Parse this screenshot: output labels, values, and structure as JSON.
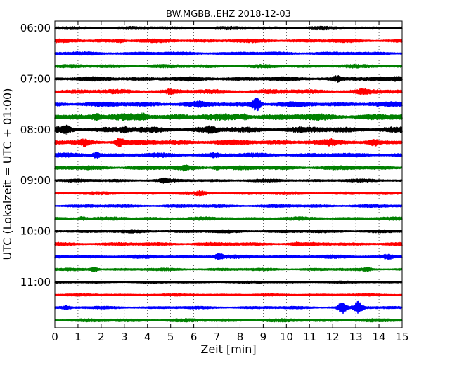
{
  "chart_data": {
    "type": "line",
    "title": "BW.MGBB..EHZ 2018-12-03",
    "xlabel": "Zeit  [min]",
    "ylabel": "UTC (Lokalzeit = UTC + 01:00)",
    "xlim": [
      0,
      15
    ],
    "x_ticks": [
      "0",
      "1",
      "2",
      "3",
      "4",
      "5",
      "6",
      "7",
      "8",
      "9",
      "10",
      "11",
      "12",
      "13",
      "14",
      "15"
    ],
    "y_ticks": [
      "06:00",
      "07:00",
      "08:00",
      "09:00",
      "10:00",
      "11:00"
    ],
    "grid": true,
    "trace_interval_minutes": 15,
    "color_cycle": [
      "#000000",
      "#ff0000",
      "#0000ff",
      "#008000"
    ],
    "traces": [
      {
        "start": "06:00",
        "color": "#000000",
        "amplitude": 0.28,
        "bursts": []
      },
      {
        "start": "06:15",
        "color": "#ff0000",
        "amplitude": 0.3,
        "bursts": [
          {
            "t": 2.8,
            "a": 0.2
          }
        ]
      },
      {
        "start": "06:30",
        "color": "#0000ff",
        "amplitude": 0.3,
        "bursts": []
      },
      {
        "start": "06:45",
        "color": "#008000",
        "amplitude": 0.3,
        "bursts": []
      },
      {
        "start": "07:00",
        "color": "#000000",
        "amplitude": 0.35,
        "bursts": [
          {
            "t": 12.2,
            "a": 0.3
          },
          {
            "t": 14.8,
            "a": 0.25
          }
        ]
      },
      {
        "start": "07:15",
        "color": "#ff0000",
        "amplitude": 0.38,
        "bursts": [
          {
            "t": 5.0,
            "a": 0.25
          },
          {
            "t": 13.3,
            "a": 0.2
          }
        ]
      },
      {
        "start": "07:30",
        "color": "#0000ff",
        "amplitude": 0.4,
        "bursts": [
          {
            "t": 8.7,
            "a": 0.9
          },
          {
            "t": 6.2,
            "a": 0.2
          }
        ]
      },
      {
        "start": "07:45",
        "color": "#008000",
        "amplitude": 0.55,
        "bursts": [
          {
            "t": 1.8,
            "a": 0.35
          },
          {
            "t": 3.8,
            "a": 0.3
          },
          {
            "t": 8.2,
            "a": 0.3
          }
        ]
      },
      {
        "start": "08:00",
        "color": "#000000",
        "amplitude": 0.5,
        "bursts": [
          {
            "t": 0.5,
            "a": 0.4
          },
          {
            "t": 3.0,
            "a": 0.3
          },
          {
            "t": 6.7,
            "a": 0.3
          }
        ]
      },
      {
        "start": "08:15",
        "color": "#ff0000",
        "amplitude": 0.4,
        "bursts": [
          {
            "t": 1.3,
            "a": 0.4
          },
          {
            "t": 2.8,
            "a": 0.55
          },
          {
            "t": 11.9,
            "a": 0.3
          },
          {
            "t": 13.8,
            "a": 0.35
          }
        ]
      },
      {
        "start": "08:30",
        "color": "#0000ff",
        "amplitude": 0.35,
        "bursts": [
          {
            "t": 1.8,
            "a": 0.35
          },
          {
            "t": 6.9,
            "a": 0.2
          }
        ]
      },
      {
        "start": "08:45",
        "color": "#008000",
        "amplitude": 0.35,
        "bursts": [
          {
            "t": 7.0,
            "a": 0.25
          },
          {
            "t": 5.6,
            "a": 0.25
          }
        ]
      },
      {
        "start": "09:00",
        "color": "#000000",
        "amplitude": 0.25,
        "bursts": [
          {
            "t": 4.7,
            "a": 0.2
          }
        ]
      },
      {
        "start": "09:15",
        "color": "#ff0000",
        "amplitude": 0.25,
        "bursts": [
          {
            "t": 6.3,
            "a": 0.25
          }
        ]
      },
      {
        "start": "09:30",
        "color": "#0000ff",
        "amplitude": 0.25,
        "bursts": []
      },
      {
        "start": "09:45",
        "color": "#008000",
        "amplitude": 0.28,
        "bursts": [
          {
            "t": 1.2,
            "a": 0.25
          }
        ]
      },
      {
        "start": "10:00",
        "color": "#000000",
        "amplitude": 0.28,
        "bursts": []
      },
      {
        "start": "10:15",
        "color": "#ff0000",
        "amplitude": 0.28,
        "bursts": [
          {
            "t": 10.4,
            "a": 0.15
          }
        ]
      },
      {
        "start": "10:30",
        "color": "#0000ff",
        "amplitude": 0.28,
        "bursts": [
          {
            "t": 7.1,
            "a": 0.4
          },
          {
            "t": 14.4,
            "a": 0.3
          }
        ]
      },
      {
        "start": "10:45",
        "color": "#008000",
        "amplitude": 0.22,
        "bursts": [
          {
            "t": 1.7,
            "a": 0.3
          },
          {
            "t": 13.5,
            "a": 0.2
          }
        ]
      },
      {
        "start": "11:00",
        "color": "#000000",
        "amplitude": 0.18,
        "bursts": []
      },
      {
        "start": "11:15",
        "color": "#ff0000",
        "amplitude": 0.2,
        "bursts": []
      },
      {
        "start": "11:30",
        "color": "#0000ff",
        "amplitude": 0.22,
        "bursts": [
          {
            "t": 12.4,
            "a": 0.8
          },
          {
            "t": 13.1,
            "a": 0.8
          },
          {
            "t": 0.5,
            "a": 0.2
          }
        ]
      },
      {
        "start": "11:45",
        "color": "#008000",
        "amplitude": 0.28,
        "bursts": []
      }
    ]
  }
}
